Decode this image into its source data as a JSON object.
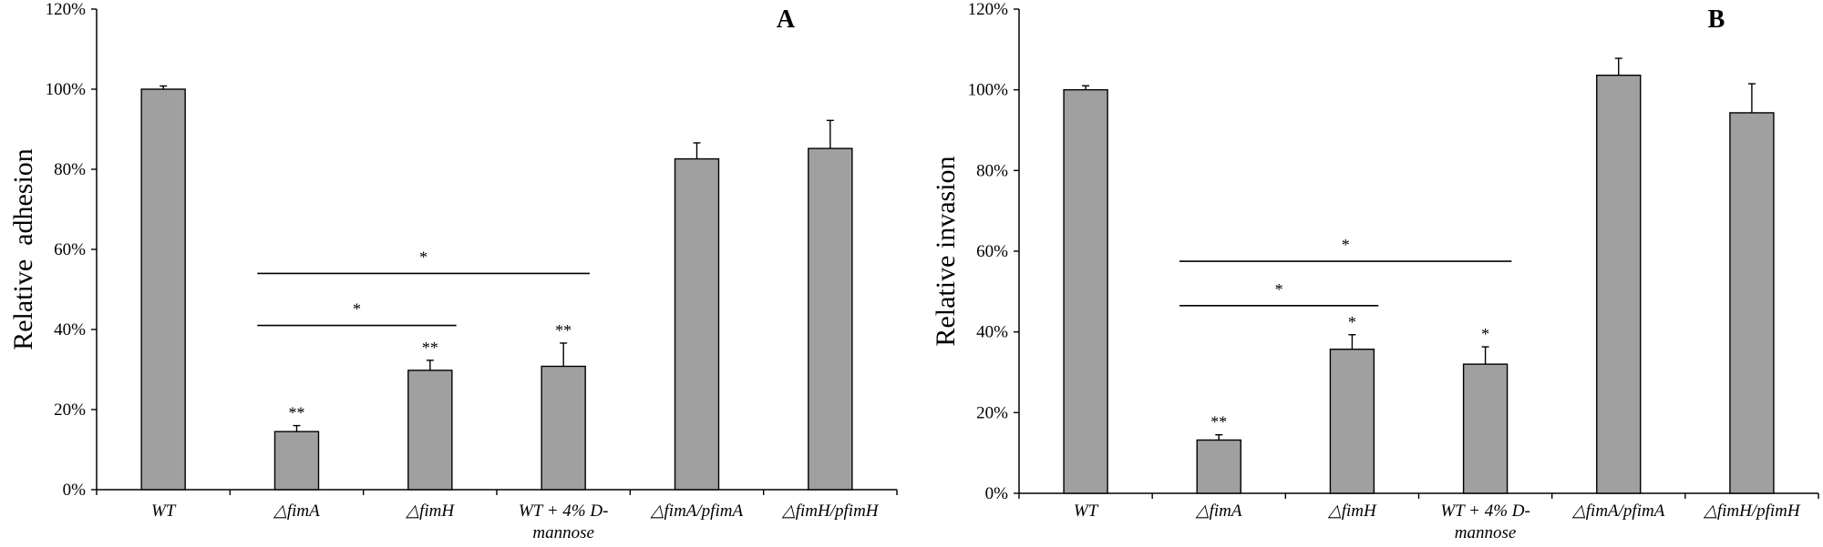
{
  "colors": {
    "bar": "#a0a0a0",
    "axis": "#000000"
  },
  "chart_data": [
    {
      "type": "bar",
      "panel": "A",
      "ylabel": "Relative  adhesion",
      "ylim": [
        0,
        120
      ],
      "yticks": [
        "0%",
        "20%",
        "40%",
        "60%",
        "80%",
        "100%",
        "120%"
      ],
      "categories": [
        {
          "lines": [
            "WT"
          ]
        },
        {
          "lines": [
            "△fimA"
          ]
        },
        {
          "lines": [
            "△fimH"
          ]
        },
        {
          "lines": [
            "WT + 4% D-",
            "mannose"
          ]
        },
        {
          "lines": [
            "△fimA/pfimA"
          ]
        },
        {
          "lines": [
            "△fimH/pfimH"
          ]
        }
      ],
      "values": [
        100,
        14.5,
        29.8,
        30.8,
        82.6,
        85.2
      ],
      "errors": [
        0.8,
        1.5,
        2.5,
        5.8,
        4.0,
        7.0
      ],
      "significance": [
        "",
        "**",
        "**",
        "**",
        "",
        ""
      ],
      "brackets": [
        {
          "from": 1,
          "to": 3,
          "y": 54,
          "label": "*"
        },
        {
          "from": 1,
          "to": 2,
          "y": 41,
          "label": "*"
        }
      ]
    },
    {
      "type": "bar",
      "panel": "B",
      "ylabel": "Relative invasion",
      "ylim": [
        0,
        120
      ],
      "yticks": [
        "0%",
        "20%",
        "40%",
        "60%",
        "80%",
        "100%",
        "120%"
      ],
      "categories": [
        {
          "lines": [
            "WT"
          ]
        },
        {
          "lines": [
            "△fimA"
          ]
        },
        {
          "lines": [
            "△fimH"
          ]
        },
        {
          "lines": [
            "WT + 4% D-",
            "mannose"
          ]
        },
        {
          "lines": [
            "△fimA/pfimA"
          ]
        },
        {
          "lines": [
            "△fimH/pfimH"
          ]
        }
      ],
      "values": [
        100,
        13.2,
        35.7,
        32.0,
        103.6,
        94.3
      ],
      "errors": [
        1.0,
        1.3,
        3.6,
        4.3,
        4.2,
        7.2
      ],
      "significance": [
        "",
        "**",
        "*",
        "*",
        "",
        ""
      ],
      "brackets": [
        {
          "from": 1,
          "to": 3,
          "y": 57.5,
          "label": "*"
        },
        {
          "from": 1,
          "to": 2,
          "y": 46.5,
          "label": "*"
        }
      ]
    }
  ]
}
